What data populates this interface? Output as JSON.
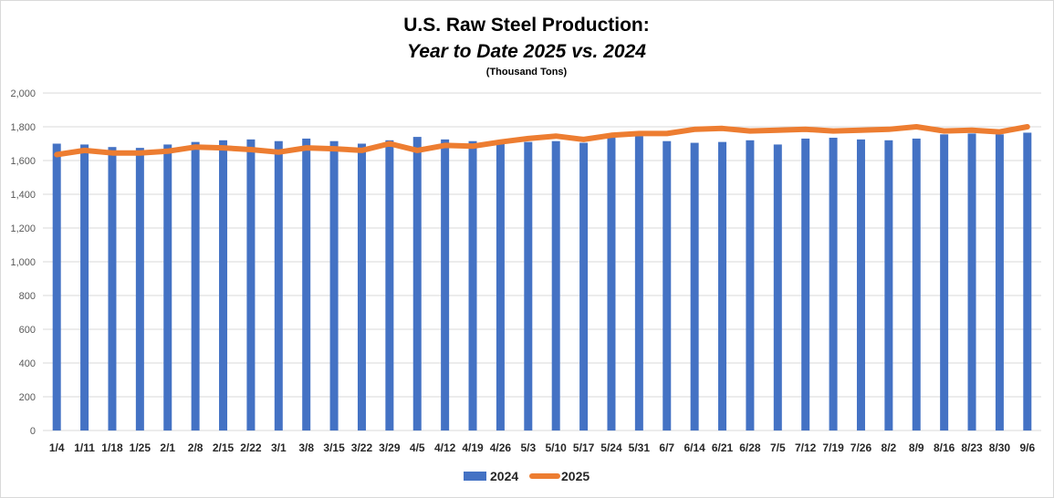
{
  "chart_data": {
    "type": "bar",
    "title": "U.S. Raw Steel Production:",
    "subtitle": "Year to Date 2025 vs. 2024",
    "unit_label": "(Thousand Tons)",
    "xlabel": "",
    "ylabel": "",
    "ylim": [
      0,
      2000
    ],
    "yticks": [
      "0",
      "200",
      "400",
      "600",
      "800",
      "1,000",
      "1,200",
      "1,400",
      "1,600",
      "1,800",
      "2,000"
    ],
    "grid": true,
    "legend_position": "bottom",
    "categories": [
      "1/4",
      "1/11",
      "1/18",
      "1/25",
      "2/1",
      "2/8",
      "2/15",
      "2/22",
      "3/1",
      "3/8",
      "3/15",
      "3/22",
      "3/29",
      "4/5",
      "4/12",
      "4/19",
      "4/26",
      "5/3",
      "5/10",
      "5/17",
      "5/24",
      "5/31",
      "6/7",
      "6/14",
      "6/21",
      "6/28",
      "7/5",
      "7/12",
      "7/19",
      "7/26",
      "8/2",
      "8/9",
      "8/16",
      "8/23",
      "8/30",
      "9/6"
    ],
    "series": [
      {
        "name": "2024",
        "type": "bar",
        "color": "#4472c4",
        "values": [
          1700,
          1695,
          1680,
          1675,
          1695,
          1710,
          1720,
          1725,
          1715,
          1730,
          1715,
          1700,
          1720,
          1740,
          1725,
          1715,
          1700,
          1710,
          1715,
          1705,
          1735,
          1745,
          1715,
          1705,
          1710,
          1720,
          1695,
          1730,
          1735,
          1725,
          1720,
          1730,
          1755,
          1760,
          1755,
          1765
        ]
      },
      {
        "name": "2025",
        "type": "line",
        "color": "#ed7d31",
        "values": [
          1635,
          1660,
          1645,
          1645,
          1655,
          1680,
          1675,
          1665,
          1650,
          1675,
          1670,
          1660,
          1700,
          1660,
          1690,
          1685,
          1710,
          1730,
          1745,
          1725,
          1750,
          1760,
          1760,
          1785,
          1790,
          1775,
          1780,
          1785,
          1775,
          1780,
          1785,
          1800,
          1775,
          1780,
          1770,
          1800
        ]
      }
    ]
  }
}
